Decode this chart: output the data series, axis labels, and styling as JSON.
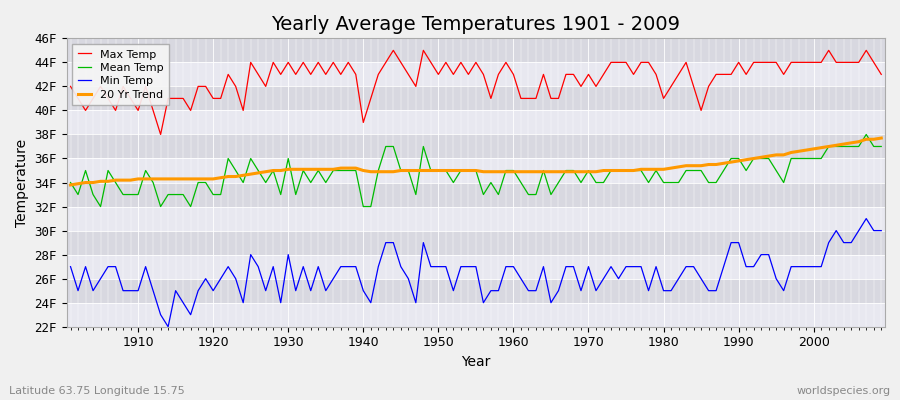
{
  "title": "Yearly Average Temperatures 1901 - 2009",
  "xlabel": "Year",
  "ylabel": "Temperature",
  "lat_lon_label": "Latitude 63.75 Longitude 15.75",
  "source_label": "worldspecies.org",
  "years": [
    1901,
    1902,
    1903,
    1904,
    1905,
    1906,
    1907,
    1908,
    1909,
    1910,
    1911,
    1912,
    1913,
    1914,
    1915,
    1916,
    1917,
    1918,
    1919,
    1920,
    1921,
    1922,
    1923,
    1924,
    1925,
    1926,
    1927,
    1928,
    1929,
    1930,
    1931,
    1932,
    1933,
    1934,
    1935,
    1936,
    1937,
    1938,
    1939,
    1940,
    1941,
    1942,
    1943,
    1944,
    1945,
    1946,
    1947,
    1948,
    1949,
    1950,
    1951,
    1952,
    1953,
    1954,
    1955,
    1956,
    1957,
    1958,
    1959,
    1960,
    1961,
    1962,
    1963,
    1964,
    1965,
    1966,
    1967,
    1968,
    1969,
    1970,
    1971,
    1972,
    1973,
    1974,
    1975,
    1976,
    1977,
    1978,
    1979,
    1980,
    1981,
    1982,
    1983,
    1984,
    1985,
    1986,
    1987,
    1988,
    1989,
    1990,
    1991,
    1992,
    1993,
    1994,
    1995,
    1996,
    1997,
    1998,
    1999,
    2000,
    2001,
    2002,
    2003,
    2004,
    2005,
    2006,
    2007,
    2008,
    2009
  ],
  "max_temp": [
    42,
    41,
    40,
    41,
    42,
    41,
    40,
    42,
    41,
    40,
    42,
    40,
    38,
    41,
    41,
    41,
    40,
    42,
    42,
    41,
    41,
    43,
    42,
    40,
    44,
    43,
    42,
    44,
    43,
    44,
    43,
    44,
    43,
    44,
    43,
    44,
    43,
    44,
    43,
    39,
    41,
    43,
    44,
    45,
    44,
    43,
    42,
    45,
    44,
    43,
    44,
    43,
    44,
    43,
    44,
    43,
    41,
    43,
    44,
    43,
    41,
    41,
    41,
    43,
    41,
    41,
    43,
    43,
    42,
    43,
    42,
    43,
    44,
    44,
    44,
    43,
    44,
    44,
    43,
    41,
    42,
    43,
    44,
    42,
    40,
    42,
    43,
    43,
    43,
    44,
    43,
    44,
    44,
    44,
    44,
    43,
    44,
    44,
    44,
    44,
    44,
    45,
    44,
    44,
    44,
    44,
    45,
    44,
    43
  ],
  "mean_temp": [
    34,
    33,
    35,
    33,
    32,
    35,
    34,
    33,
    33,
    33,
    35,
    34,
    32,
    33,
    33,
    33,
    32,
    34,
    34,
    33,
    33,
    36,
    35,
    34,
    36,
    35,
    34,
    35,
    33,
    36,
    33,
    35,
    34,
    35,
    34,
    35,
    35,
    35,
    35,
    32,
    32,
    35,
    37,
    37,
    35,
    35,
    33,
    37,
    35,
    35,
    35,
    34,
    35,
    35,
    35,
    33,
    34,
    33,
    35,
    35,
    34,
    33,
    33,
    35,
    33,
    34,
    35,
    35,
    34,
    35,
    34,
    34,
    35,
    35,
    35,
    35,
    35,
    34,
    35,
    34,
    34,
    34,
    35,
    35,
    35,
    34,
    34,
    35,
    36,
    36,
    35,
    36,
    36,
    36,
    35,
    34,
    36,
    36,
    36,
    36,
    36,
    37,
    37,
    37,
    37,
    37,
    38,
    37,
    37
  ],
  "min_temp": [
    27,
    25,
    27,
    25,
    26,
    27,
    27,
    25,
    25,
    25,
    27,
    25,
    23,
    22,
    25,
    24,
    23,
    25,
    26,
    25,
    26,
    27,
    26,
    24,
    28,
    27,
    25,
    27,
    24,
    28,
    25,
    27,
    25,
    27,
    25,
    26,
    27,
    27,
    27,
    25,
    24,
    27,
    29,
    29,
    27,
    26,
    24,
    29,
    27,
    27,
    27,
    25,
    27,
    27,
    27,
    24,
    25,
    25,
    27,
    27,
    26,
    25,
    25,
    27,
    24,
    25,
    27,
    27,
    25,
    27,
    25,
    26,
    27,
    26,
    27,
    27,
    27,
    25,
    27,
    25,
    25,
    26,
    27,
    27,
    26,
    25,
    25,
    27,
    29,
    29,
    27,
    27,
    28,
    28,
    26,
    25,
    27,
    27,
    27,
    27,
    27,
    29,
    30,
    29,
    29,
    30,
    31,
    30,
    30
  ],
  "trend_years": [
    1901,
    1902,
    1903,
    1904,
    1905,
    1906,
    1907,
    1908,
    1909,
    1910,
    1911,
    1912,
    1913,
    1914,
    1915,
    1916,
    1917,
    1918,
    1919,
    1920,
    1921,
    1922,
    1923,
    1924,
    1925,
    1926,
    1927,
    1928,
    1929,
    1930,
    1931,
    1932,
    1933,
    1934,
    1935,
    1936,
    1937,
    1938,
    1939,
    1940,
    1941,
    1942,
    1943,
    1944,
    1945,
    1946,
    1947,
    1948,
    1949,
    1950,
    1951,
    1952,
    1953,
    1954,
    1955,
    1956,
    1957,
    1958,
    1959,
    1960,
    1961,
    1962,
    1963,
    1964,
    1965,
    1966,
    1967,
    1968,
    1969,
    1970,
    1971,
    1972,
    1973,
    1974,
    1975,
    1976,
    1977,
    1978,
    1979,
    1980,
    1981,
    1982,
    1983,
    1984,
    1985,
    1986,
    1987,
    1988,
    1989,
    1990,
    1991,
    1992,
    1993,
    1994,
    1995,
    1996,
    1997,
    1998,
    1999,
    2000,
    2001,
    2002,
    2003,
    2004,
    2005,
    2006,
    2007,
    2008,
    2009
  ],
  "trend": [
    33.8,
    33.9,
    34.0,
    34.0,
    34.1,
    34.1,
    34.2,
    34.2,
    34.2,
    34.3,
    34.3,
    34.3,
    34.3,
    34.3,
    34.3,
    34.3,
    34.3,
    34.3,
    34.3,
    34.3,
    34.4,
    34.5,
    34.5,
    34.6,
    34.7,
    34.8,
    34.9,
    35.0,
    35.0,
    35.1,
    35.1,
    35.1,
    35.1,
    35.1,
    35.1,
    35.1,
    35.2,
    35.2,
    35.2,
    35.0,
    34.9,
    34.9,
    34.9,
    34.9,
    35.0,
    35.0,
    35.0,
    35.0,
    35.0,
    35.0,
    35.0,
    35.0,
    35.0,
    35.0,
    35.0,
    34.9,
    34.9,
    34.9,
    34.9,
    34.9,
    34.9,
    34.9,
    34.9,
    34.9,
    34.9,
    34.9,
    34.9,
    34.9,
    34.9,
    34.9,
    34.9,
    35.0,
    35.0,
    35.0,
    35.0,
    35.0,
    35.1,
    35.1,
    35.1,
    35.1,
    35.2,
    35.3,
    35.4,
    35.4,
    35.4,
    35.5,
    35.5,
    35.6,
    35.7,
    35.8,
    35.9,
    36.0,
    36.1,
    36.2,
    36.3,
    36.3,
    36.5,
    36.6,
    36.7,
    36.8,
    36.9,
    37.0,
    37.1,
    37.2,
    37.3,
    37.4,
    37.6,
    37.6,
    37.7
  ],
  "max_color": "#ff0000",
  "mean_color": "#00bb00",
  "min_color": "#0000ff",
  "trend_color": "#ff9900",
  "plot_bg_color": "#d8d8e0",
  "alt_band_color": "#e8e8f0",
  "fig_bg_color": "#f0f0f0",
  "grid_color": "#ffffff",
  "legend_labels": [
    "Max Temp",
    "Mean Temp",
    "Min Temp",
    "20 Yr Trend"
  ],
  "ylim_min": 22,
  "ylim_max": 46,
  "yticks": [
    22,
    24,
    26,
    28,
    30,
    32,
    34,
    36,
    38,
    40,
    42,
    44,
    46
  ],
  "xticks": [
    1910,
    1920,
    1930,
    1940,
    1950,
    1960,
    1970,
    1980,
    1990,
    2000
  ],
  "title_fontsize": 14,
  "axis_label_fontsize": 10,
  "tick_fontsize": 9
}
